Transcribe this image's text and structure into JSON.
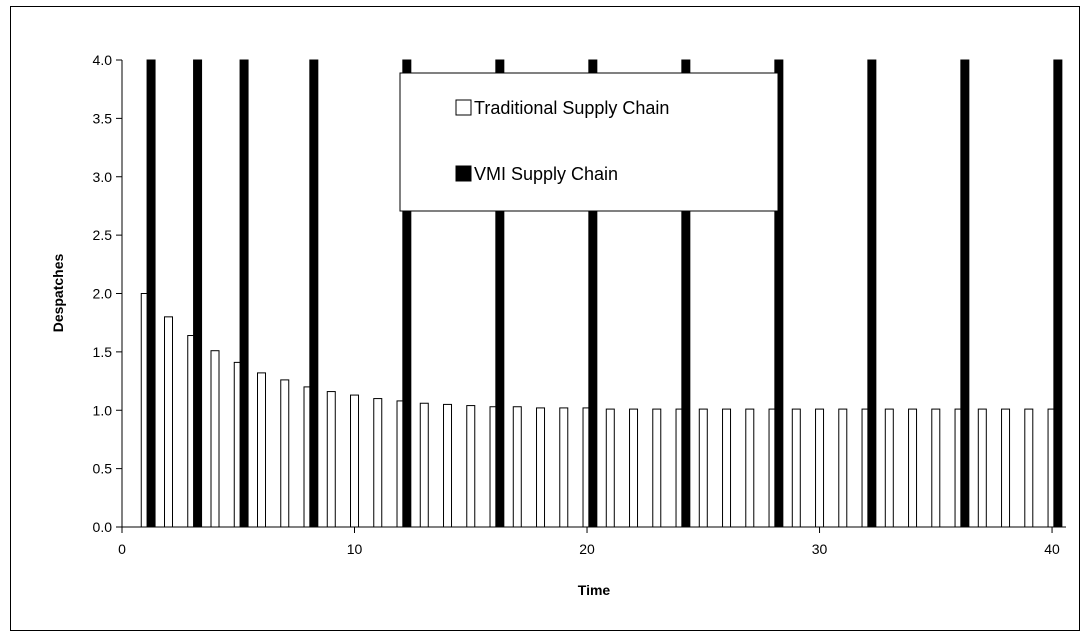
{
  "chart_data": {
    "type": "bar",
    "xlabel": "Time",
    "ylabel": "Despatches",
    "xlim": [
      0,
      40
    ],
    "ylim": [
      0,
      4
    ],
    "x_ticks": [
      "0",
      "10",
      "20",
      "30",
      "40"
    ],
    "y_ticks": [
      "0.0",
      "0.5",
      "1.0",
      "1.5",
      "2.0",
      "2.5",
      "3.0",
      "3.5",
      "4.0"
    ],
    "grid": false,
    "legend_position": "top-center",
    "series": [
      {
        "name": "Traditional Supply Chain",
        "color": "#ffffff",
        "x": [
          1,
          2,
          3,
          4,
          5,
          6,
          7,
          8,
          9,
          10,
          11,
          12,
          13,
          14,
          15,
          16,
          17,
          18,
          19,
          20,
          21,
          22,
          23,
          24,
          25,
          26,
          27,
          28,
          29,
          30,
          31,
          32,
          33,
          34,
          35,
          36,
          37,
          38,
          39,
          40
        ],
        "values": [
          2.0,
          1.8,
          1.64,
          1.51,
          1.41,
          1.32,
          1.26,
          1.2,
          1.16,
          1.13,
          1.1,
          1.08,
          1.06,
          1.05,
          1.04,
          1.03,
          1.03,
          1.02,
          1.02,
          1.02,
          1.01,
          1.01,
          1.01,
          1.01,
          1.01,
          1.01,
          1.01,
          1.01,
          1.01,
          1.01,
          1.01,
          1.01,
          1.01,
          1.01,
          1.01,
          1.01,
          1.01,
          1.01,
          1.01,
          1.01
        ]
      },
      {
        "name": "VMI Supply Chain",
        "color": "#000000",
        "x": [
          1.25,
          3.25,
          5.25,
          8.25,
          12.25,
          16.25,
          20.25,
          24.25,
          28.25,
          32.25,
          36.25,
          40.25
        ],
        "values": [
          4,
          4,
          4,
          4,
          4,
          4,
          4,
          4,
          4,
          4,
          4,
          4
        ]
      }
    ]
  }
}
